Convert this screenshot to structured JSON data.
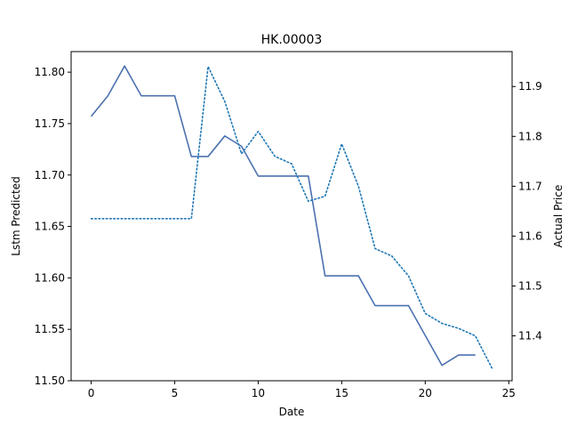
{
  "chart_data": {
    "type": "line",
    "title": "HK.00003",
    "xlabel": "Date",
    "ylabel_left": "Lstm Predicted",
    "ylabel_right": "Actual Price",
    "xlim": [
      -1.2,
      25.2
    ],
    "ylim_left": [
      11.5,
      11.82
    ],
    "ylim_right": [
      11.31,
      11.97
    ],
    "xticks": [
      0,
      5,
      10,
      15,
      20,
      25
    ],
    "yticks_left": [
      11.5,
      11.55,
      11.6,
      11.65,
      11.7,
      11.75,
      11.8
    ],
    "yticks_right": [
      11.4,
      11.5,
      11.6,
      11.7,
      11.8,
      11.9
    ],
    "ytick_labels_left": [
      "11.50",
      "11.55",
      "11.60",
      "11.65",
      "11.70",
      "11.75",
      "11.80"
    ],
    "ytick_labels_right": [
      "11.4",
      "11.5",
      "11.6",
      "11.7",
      "11.8",
      "11.9"
    ],
    "grid": false,
    "series": [
      {
        "axis": "left",
        "style": "solid",
        "color": "#4c72b0",
        "x": [
          0,
          1,
          2,
          3,
          4,
          5,
          6,
          7,
          8,
          9,
          10,
          11,
          12,
          13,
          14,
          15,
          16,
          17,
          18,
          19,
          20,
          21,
          22,
          23
        ],
        "values": [
          11.757,
          11.777,
          11.806,
          11.777,
          11.777,
          11.777,
          11.718,
          11.718,
          11.738,
          11.728,
          11.699,
          11.699,
          11.699,
          11.699,
          11.602,
          11.602,
          11.602,
          11.573,
          11.573,
          11.573,
          11.544,
          11.515,
          11.525,
          11.525
        ]
      },
      {
        "axis": "right",
        "style": "dotted",
        "color": "#1f77b4",
        "x": [
          0,
          1,
          2,
          3,
          4,
          5,
          6,
          7,
          8,
          9,
          10,
          11,
          12,
          13,
          14,
          15,
          16,
          17,
          18,
          19,
          20,
          21,
          22,
          23,
          24
        ],
        "values": [
          11.635,
          11.635,
          11.635,
          11.635,
          11.635,
          11.635,
          11.635,
          11.94,
          11.87,
          11.765,
          11.81,
          11.76,
          11.745,
          11.67,
          11.68,
          11.785,
          11.7,
          11.575,
          11.56,
          11.52,
          11.445,
          11.425,
          11.415,
          11.4,
          11.335
        ]
      }
    ]
  }
}
